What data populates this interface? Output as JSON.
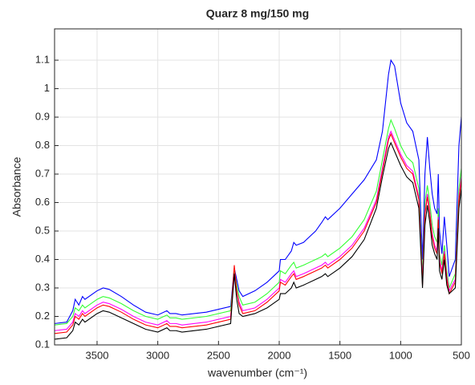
{
  "chart_data": {
    "type": "line",
    "title": "Quarz 8 mg/150 mg",
    "xlabel": "wavenumber (cm⁻¹)",
    "ylabel": "Absorbance",
    "x": [
      3850,
      3750,
      3700,
      3680,
      3650,
      3620,
      3600,
      3500,
      3450,
      3400,
      3300,
      3200,
      3100,
      3000,
      2925,
      2900,
      2850,
      2800,
      2600,
      2400,
      2370,
      2350,
      2330,
      2300,
      2200,
      2100,
      2000,
      1990,
      1950,
      1900,
      1880,
      1860,
      1800,
      1700,
      1650,
      1620,
      1600,
      1500,
      1400,
      1300,
      1200,
      1150,
      1100,
      1080,
      1050,
      1000,
      950,
      900,
      850,
      820,
      800,
      780,
      760,
      740,
      720,
      700,
      690,
      680,
      660,
      640,
      620,
      600,
      550,
      520,
      500
    ],
    "series": [
      {
        "color": "#0000ff",
        "values": [
          0.175,
          0.18,
          0.22,
          0.26,
          0.24,
          0.27,
          0.26,
          0.29,
          0.3,
          0.295,
          0.27,
          0.24,
          0.215,
          0.205,
          0.22,
          0.21,
          0.21,
          0.205,
          0.215,
          0.235,
          0.37,
          0.33,
          0.29,
          0.27,
          0.29,
          0.32,
          0.36,
          0.4,
          0.4,
          0.43,
          0.46,
          0.45,
          0.46,
          0.5,
          0.53,
          0.55,
          0.54,
          0.58,
          0.63,
          0.68,
          0.75,
          0.85,
          1.05,
          1.1,
          1.08,
          0.95,
          0.88,
          0.85,
          0.75,
          0.4,
          0.7,
          0.83,
          0.72,
          0.63,
          0.58,
          0.56,
          0.7,
          0.5,
          0.42,
          0.55,
          0.45,
          0.34,
          0.4,
          0.8,
          0.9
        ]
      },
      {
        "color": "#33ff33",
        "values": [
          0.17,
          0.175,
          0.2,
          0.23,
          0.22,
          0.24,
          0.23,
          0.26,
          0.27,
          0.265,
          0.245,
          0.22,
          0.2,
          0.19,
          0.205,
          0.195,
          0.195,
          0.19,
          0.2,
          0.22,
          0.36,
          0.31,
          0.27,
          0.24,
          0.25,
          0.28,
          0.32,
          0.36,
          0.35,
          0.38,
          0.39,
          0.37,
          0.38,
          0.4,
          0.41,
          0.42,
          0.41,
          0.44,
          0.48,
          0.54,
          0.64,
          0.75,
          0.86,
          0.89,
          0.86,
          0.8,
          0.76,
          0.74,
          0.65,
          0.34,
          0.6,
          0.66,
          0.6,
          0.52,
          0.48,
          0.46,
          0.58,
          0.42,
          0.38,
          0.45,
          0.36,
          0.3,
          0.35,
          0.65,
          0.72
        ]
      },
      {
        "color": "#ff00ff",
        "values": [
          0.15,
          0.155,
          0.18,
          0.21,
          0.2,
          0.22,
          0.21,
          0.24,
          0.25,
          0.245,
          0.225,
          0.2,
          0.18,
          0.17,
          0.185,
          0.175,
          0.175,
          0.17,
          0.18,
          0.2,
          0.34,
          0.29,
          0.25,
          0.22,
          0.23,
          0.26,
          0.3,
          0.33,
          0.32,
          0.35,
          0.36,
          0.34,
          0.35,
          0.37,
          0.38,
          0.39,
          0.38,
          0.41,
          0.45,
          0.51,
          0.61,
          0.72,
          0.83,
          0.85,
          0.82,
          0.77,
          0.73,
          0.71,
          0.62,
          0.32,
          0.57,
          0.63,
          0.57,
          0.49,
          0.45,
          0.43,
          0.55,
          0.4,
          0.36,
          0.43,
          0.34,
          0.29,
          0.33,
          0.62,
          0.69
        ]
      },
      {
        "color": "#ff0000",
        "values": [
          0.14,
          0.145,
          0.17,
          0.2,
          0.19,
          0.21,
          0.2,
          0.23,
          0.24,
          0.235,
          0.215,
          0.19,
          0.17,
          0.16,
          0.175,
          0.165,
          0.165,
          0.16,
          0.17,
          0.19,
          0.38,
          0.29,
          0.24,
          0.21,
          0.22,
          0.25,
          0.29,
          0.32,
          0.31,
          0.34,
          0.35,
          0.33,
          0.34,
          0.36,
          0.37,
          0.38,
          0.37,
          0.4,
          0.44,
          0.5,
          0.6,
          0.71,
          0.82,
          0.84,
          0.81,
          0.76,
          0.72,
          0.7,
          0.61,
          0.31,
          0.56,
          0.62,
          0.56,
          0.48,
          0.44,
          0.42,
          0.54,
          0.39,
          0.35,
          0.42,
          0.33,
          0.28,
          0.32,
          0.61,
          0.68
        ]
      },
      {
        "color": "#000000",
        "values": [
          0.12,
          0.125,
          0.15,
          0.18,
          0.17,
          0.19,
          0.18,
          0.21,
          0.22,
          0.215,
          0.195,
          0.175,
          0.155,
          0.145,
          0.16,
          0.15,
          0.15,
          0.145,
          0.155,
          0.175,
          0.35,
          0.26,
          0.21,
          0.2,
          0.21,
          0.23,
          0.26,
          0.28,
          0.28,
          0.3,
          0.32,
          0.3,
          0.31,
          0.33,
          0.34,
          0.35,
          0.34,
          0.37,
          0.41,
          0.47,
          0.58,
          0.69,
          0.79,
          0.81,
          0.78,
          0.73,
          0.69,
          0.67,
          0.58,
          0.3,
          0.52,
          0.59,
          0.53,
          0.45,
          0.42,
          0.4,
          0.51,
          0.36,
          0.33,
          0.4,
          0.31,
          0.28,
          0.3,
          0.58,
          0.65
        ]
      }
    ],
    "xlim": [
      3850,
      500
    ],
    "xticks": [
      3500,
      3000,
      2500,
      2000,
      1500,
      1000,
      500
    ],
    "ylim": [
      0.1,
      1.21
    ],
    "yticks": [
      0.1,
      0.2,
      0.3,
      0.4,
      0.5,
      0.6,
      0.7,
      0.8,
      0.9,
      1,
      1.1
    ],
    "grid": true
  }
}
